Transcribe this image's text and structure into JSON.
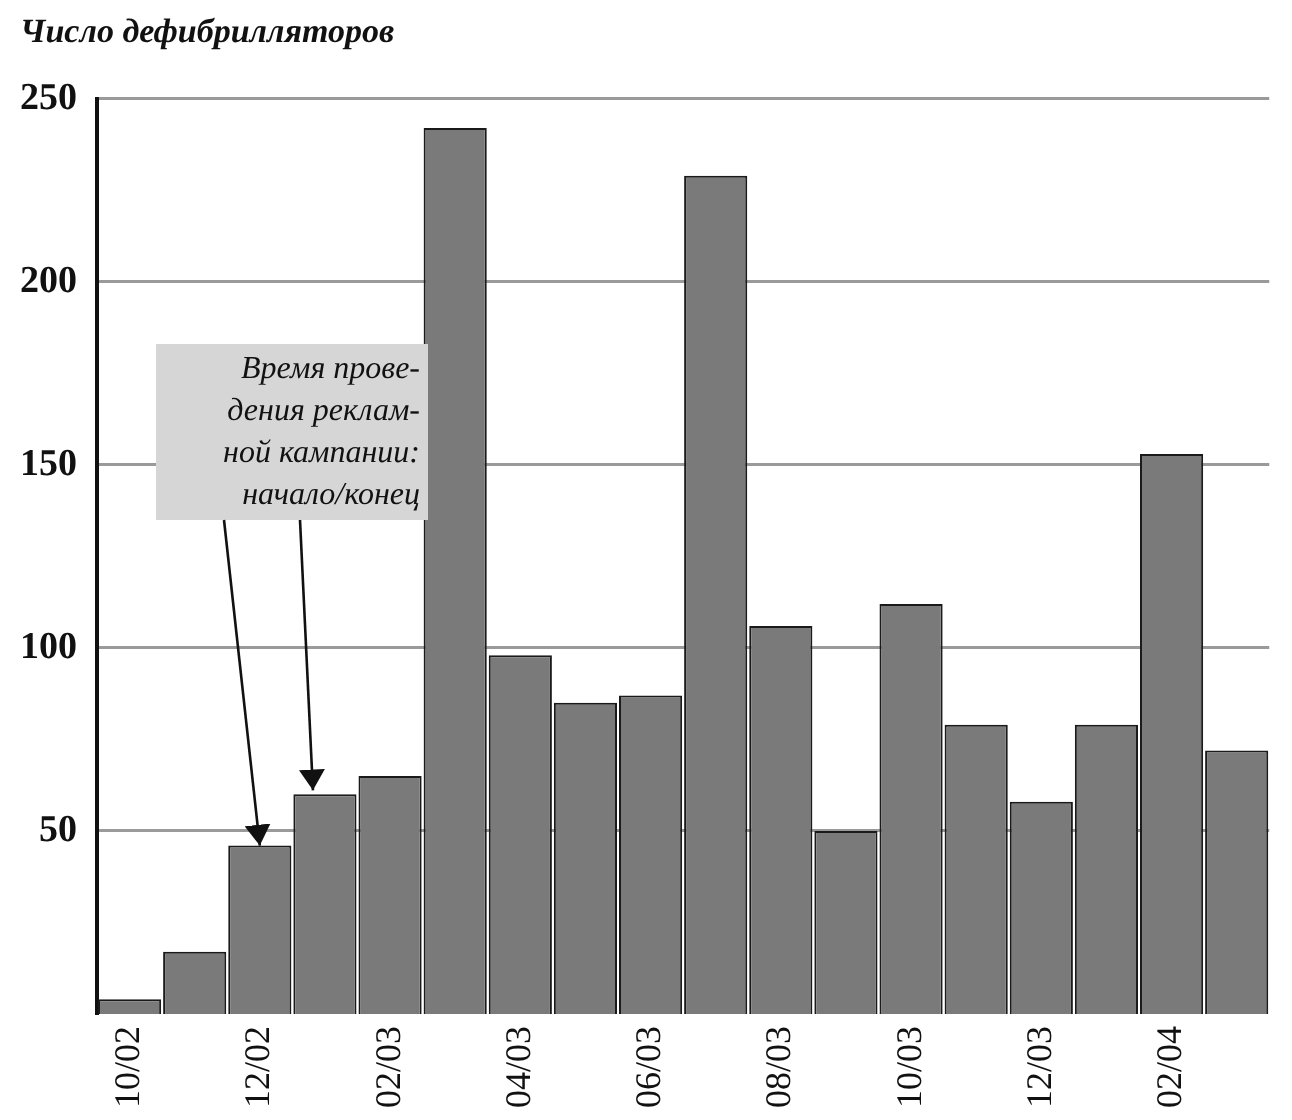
{
  "chart_data": {
    "type": "bar",
    "ylabel": "Число дефибрилляторов",
    "categories": [
      "10/02",
      null,
      "12/02",
      null,
      "02/03",
      null,
      "04/03",
      null,
      "06/03",
      null,
      "08/03",
      null,
      "10/03",
      null,
      "12/03",
      null,
      "02/04",
      null
    ],
    "values": [
      4,
      17,
      46,
      60,
      65,
      242,
      98,
      85,
      87,
      229,
      106,
      50,
      112,
      79,
      58,
      79,
      153,
      72
    ],
    "color": "#7a7a7a",
    "ylim": [
      0,
      250
    ],
    "yticks": [
      50,
      100,
      150,
      200,
      250
    ],
    "grid": "y",
    "annotations": [
      {
        "text": "Время прове-\nдения реклам-\nной кампании:\nначало/конец",
        "x": "12/02",
        "y": 46
      }
    ]
  }
}
